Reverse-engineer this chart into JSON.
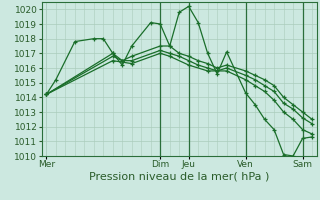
{
  "background_color": "#cce8e0",
  "grid_color": "#aaccbc",
  "line_color": "#1a6e2a",
  "marker_color": "#1a6e2a",
  "xlabel": "Pression niveau de la mer( hPa )",
  "ylabel": "",
  "ylim": [
    1010,
    1020.5
  ],
  "yticks": [
    1010,
    1011,
    1012,
    1013,
    1014,
    1015,
    1016,
    1017,
    1018,
    1019,
    1020
  ],
  "xtick_labels": [
    "Mer",
    "Dim",
    "Jeu",
    "Ven",
    "Sam"
  ],
  "xtick_positions": [
    0,
    12,
    15,
    21,
    27
  ],
  "series": [
    [
      0,
      1014.2,
      1,
      1015.2,
      3,
      1017.8,
      5,
      1018.0,
      6,
      1018.0,
      7,
      1017.0,
      8,
      1016.2,
      9,
      1017.5,
      11,
      1019.1,
      12,
      1019.0,
      13,
      1017.5,
      14,
      1019.8,
      15,
      1020.2,
      16,
      1019.1,
      17,
      1017.0,
      18,
      1015.6,
      19,
      1017.1,
      21,
      1014.3,
      22,
      1013.5,
      23,
      1012.5,
      24,
      1011.8,
      25,
      1010.1,
      26,
      1010.0,
      27,
      1011.2,
      28,
      1011.3
    ],
    [
      0,
      1014.2,
      7,
      1017.0,
      8,
      1016.5,
      9,
      1016.8,
      12,
      1017.5,
      13,
      1017.5,
      14,
      1017.0,
      15,
      1016.8,
      16,
      1016.5,
      17,
      1016.3,
      18,
      1016.0,
      19,
      1016.2,
      21,
      1015.8,
      22,
      1015.5,
      23,
      1015.2,
      24,
      1014.8,
      25,
      1014.0,
      26,
      1013.5,
      27,
      1013.0,
      28,
      1012.5
    ],
    [
      0,
      1014.2,
      7,
      1016.8,
      8,
      1016.5,
      9,
      1016.5,
      12,
      1017.2,
      13,
      1017.0,
      14,
      1016.8,
      15,
      1016.5,
      16,
      1016.2,
      17,
      1016.0,
      18,
      1015.8,
      19,
      1016.0,
      21,
      1015.5,
      22,
      1015.2,
      23,
      1014.8,
      24,
      1014.4,
      25,
      1013.6,
      26,
      1013.2,
      27,
      1012.6,
      28,
      1012.2
    ],
    [
      0,
      1014.2,
      7,
      1016.5,
      9,
      1016.3,
      12,
      1017.0,
      13,
      1016.8,
      15,
      1016.2,
      17,
      1015.8,
      19,
      1015.8,
      21,
      1015.2,
      22,
      1014.8,
      23,
      1014.4,
      24,
      1013.8,
      25,
      1013.0,
      26,
      1012.5,
      27,
      1011.8,
      28,
      1011.5
    ]
  ],
  "vline_positions": [
    12,
    15,
    21,
    27
  ],
  "vline_color": "#2a6e3a",
  "title_color": "#2a5c2a",
  "xlabel_fontsize": 8,
  "tick_fontsize": 6.5,
  "figwidth": 3.2,
  "figheight": 2.0,
  "dpi": 100
}
